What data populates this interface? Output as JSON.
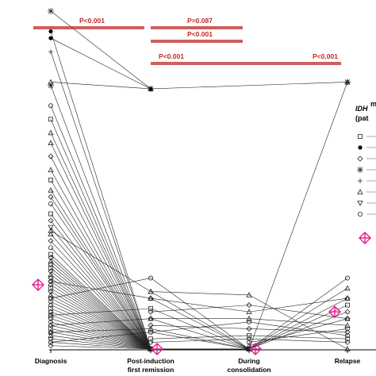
{
  "chart_data": {
    "type": "line",
    "categories": [
      "Diagnosis",
      "Post-induction\nfirst remission",
      "During\nconsolidation",
      "Relapse"
    ],
    "axis_break_top": true,
    "colors": {
      "lines": "#000000",
      "pvalue": "#c0282a",
      "median_marker": "#e0218a"
    },
    "pvalues": [
      {
        "label": "P<0.001",
        "from": 0,
        "to": 1,
        "row": 0
      },
      {
        "label": "P=0.087",
        "from": 1,
        "to": 2,
        "row": 0
      },
      {
        "label": "P<0.001",
        "from": 1,
        "to": 2,
        "row": 1
      },
      {
        "label": "P<0.001",
        "from": 1,
        "to": 3,
        "row": 2,
        "split_label_left": true
      }
    ],
    "legend": {
      "title_line1": "IDH",
      "title_sup": "m",
      "title_line2": "(pat",
      "symbols": [
        "square",
        "filled-circle",
        "diamond",
        "asterisk",
        "plus",
        "triangle",
        "down-triangle",
        "circle",
        "crosshair-diamond"
      ]
    },
    "median_markers": [
      {
        "category": 0,
        "value": 0.19
      },
      {
        "category": 1,
        "value": 0.0
      },
      {
        "category": 2,
        "value": 0.0
      },
      {
        "category": 3,
        "value": 0.11
      }
    ],
    "series_note": "Individual patient trajectories; values as fraction of axis height",
    "series": [
      {
        "values": [
          1.0,
          0.77,
          null,
          null
        ],
        "marker": "asterisk"
      },
      {
        "values": [
          0.94,
          0.0,
          null,
          null
        ],
        "marker": "filled-circle"
      },
      {
        "values": [
          0.92,
          0.77,
          null,
          null
        ],
        "marker": "filled-circle"
      },
      {
        "values": [
          0.88,
          0.0,
          null,
          null
        ],
        "marker": "plus"
      },
      {
        "values": [
          0.79,
          0.77,
          null,
          0.79
        ],
        "marker": "triangle"
      },
      {
        "values": [
          0.78,
          0.0,
          0.0,
          0.79
        ],
        "marker": "asterisk"
      },
      {
        "values": [
          0.72,
          0.0,
          null,
          null
        ],
        "marker": "circle"
      },
      {
        "values": [
          0.68,
          0.0,
          null,
          null
        ],
        "marker": "square"
      },
      {
        "values": [
          0.64,
          0.0,
          0.0,
          null
        ],
        "marker": "triangle"
      },
      {
        "values": [
          0.61,
          0.0,
          null,
          null
        ],
        "marker": "triangle"
      },
      {
        "values": [
          0.57,
          0.0,
          null,
          null
        ],
        "marker": "diamond"
      },
      {
        "values": [
          0.53,
          0.0,
          null,
          null
        ],
        "marker": "triangle"
      },
      {
        "values": [
          0.5,
          0.0,
          null,
          null
        ],
        "marker": "square"
      },
      {
        "values": [
          0.47,
          0.0,
          null,
          null
        ],
        "marker": "triangle"
      },
      {
        "values": [
          0.45,
          0.0,
          null,
          null
        ],
        "marker": "diamond"
      },
      {
        "values": [
          0.43,
          0.0,
          null,
          null
        ],
        "marker": "circle"
      },
      {
        "values": [
          0.4,
          0.0,
          null,
          null
        ],
        "marker": "square"
      },
      {
        "values": [
          0.38,
          0.0,
          null,
          null
        ],
        "marker": "diamond"
      },
      {
        "values": [
          0.36,
          0.0,
          null,
          null
        ],
        "marker": "down-triangle"
      },
      {
        "values": [
          0.34,
          0.0,
          null,
          null
        ],
        "marker": "triangle"
      },
      {
        "values": [
          0.32,
          0.0,
          null,
          null
        ],
        "marker": "diamond"
      },
      {
        "values": [
          0.3,
          0.0,
          null,
          null
        ],
        "marker": "circle"
      },
      {
        "values": [
          0.28,
          0.0,
          null,
          null
        ],
        "marker": "square"
      },
      {
        "values": [
          0.27,
          0.0,
          null,
          null
        ],
        "marker": "diamond"
      },
      {
        "values": [
          0.26,
          0.0,
          0.0,
          null
        ],
        "marker": "triangle"
      },
      {
        "values": [
          0.25,
          0.0,
          null,
          null
        ],
        "marker": "diamond"
      },
      {
        "values": [
          0.24,
          0.0,
          null,
          null
        ],
        "marker": "square"
      },
      {
        "values": [
          0.23,
          0.0,
          null,
          null
        ],
        "marker": "diamond"
      },
      {
        "values": [
          0.22,
          0.0,
          null,
          null
        ],
        "marker": "triangle"
      },
      {
        "values": [
          0.21,
          0.0,
          null,
          null
        ],
        "marker": "diamond"
      },
      {
        "values": [
          0.2,
          0.0,
          null,
          null
        ],
        "marker": "circle"
      },
      {
        "values": [
          0.19,
          0.0,
          null,
          null
        ],
        "marker": "diamond"
      },
      {
        "values": [
          0.18,
          0.0,
          null,
          null
        ],
        "marker": "square"
      },
      {
        "values": [
          0.17,
          0.0,
          0.0,
          0.11
        ],
        "marker": "diamond"
      },
      {
        "values": [
          0.16,
          0.0,
          null,
          null
        ],
        "marker": "triangle"
      },
      {
        "values": [
          0.15,
          0.0,
          null,
          null
        ],
        "marker": "diamond"
      },
      {
        "values": [
          0.14,
          0.0,
          null,
          null
        ],
        "marker": "circle"
      },
      {
        "values": [
          0.13,
          0.0,
          null,
          null
        ],
        "marker": "diamond"
      },
      {
        "values": [
          0.12,
          0.0,
          null,
          null
        ],
        "marker": "square"
      },
      {
        "values": [
          0.11,
          0.0,
          null,
          null
        ],
        "marker": "diamond"
      },
      {
        "values": [
          0.1,
          0.0,
          null,
          null
        ],
        "marker": "triangle"
      },
      {
        "values": [
          0.09,
          0.0,
          null,
          null
        ],
        "marker": "diamond"
      },
      {
        "values": [
          0.08,
          0.0,
          null,
          null
        ],
        "marker": "circle"
      },
      {
        "values": [
          0.07,
          0.0,
          null,
          null
        ],
        "marker": "diamond"
      },
      {
        "values": [
          0.06,
          0.0,
          null,
          null
        ],
        "marker": "square"
      },
      {
        "values": [
          0.05,
          0.0,
          null,
          null
        ],
        "marker": "diamond"
      },
      {
        "values": [
          0.04,
          0.0,
          null,
          null
        ],
        "marker": "triangle"
      },
      {
        "values": [
          0.03,
          0.0,
          null,
          null
        ],
        "marker": "diamond"
      },
      {
        "values": [
          0.02,
          0.0,
          null,
          null
        ],
        "marker": "circle"
      },
      {
        "values": [
          0.01,
          0.0,
          null,
          null
        ],
        "marker": "diamond"
      },
      {
        "values": [
          0.15,
          0.21,
          0.0,
          null
        ],
        "marker": "circle"
      },
      {
        "values": [
          0.2,
          0.15,
          0.0,
          null
        ],
        "marker": "diamond"
      },
      {
        "values": [
          0.35,
          0.17,
          0.0,
          null
        ],
        "marker": "triangle"
      },
      {
        "values": [
          0.1,
          0.12,
          0.0,
          null
        ],
        "marker": "square"
      },
      {
        "values": [
          0.07,
          0.09,
          0.0,
          null
        ],
        "marker": "diamond"
      },
      {
        "values": [
          0.05,
          0.06,
          0.0,
          null
        ],
        "marker": "triangle"
      },
      {
        "values": [
          0.02,
          0.05,
          0.0,
          null
        ],
        "marker": "circle"
      },
      {
        "values": [
          null,
          0.17,
          0.16,
          0.0
        ],
        "marker": "triangle"
      },
      {
        "values": [
          null,
          0.15,
          0.11,
          0.15
        ],
        "marker": "triangle"
      },
      {
        "values": [
          null,
          0.11,
          0.13,
          0.09
        ],
        "marker": "diamond"
      },
      {
        "values": [
          null,
          0.09,
          0.09,
          0.07
        ],
        "marker": "triangle"
      },
      {
        "values": [
          null,
          0.07,
          0.06,
          0.05
        ],
        "marker": "diamond"
      },
      {
        "values": [
          null,
          0.05,
          0.08,
          0.04
        ],
        "marker": "circle"
      },
      {
        "values": [
          null,
          0.03,
          0.04,
          0.03
        ],
        "marker": "square"
      },
      {
        "values": [
          null,
          0.02,
          0.03,
          0.02
        ],
        "marker": "diamond"
      },
      {
        "values": [
          null,
          null,
          0.0,
          0.21
        ],
        "marker": "circle"
      },
      {
        "values": [
          null,
          null,
          0.0,
          0.18
        ],
        "marker": "triangle"
      },
      {
        "values": [
          null,
          null,
          0.0,
          0.15
        ],
        "marker": "diamond"
      },
      {
        "values": [
          null,
          null,
          0.0,
          0.13
        ],
        "marker": "square"
      },
      {
        "values": [
          null,
          null,
          0.01,
          0.09
        ],
        "marker": "triangle"
      },
      {
        "values": [
          null,
          null,
          0.02,
          0.06
        ],
        "marker": "circle"
      }
    ]
  }
}
